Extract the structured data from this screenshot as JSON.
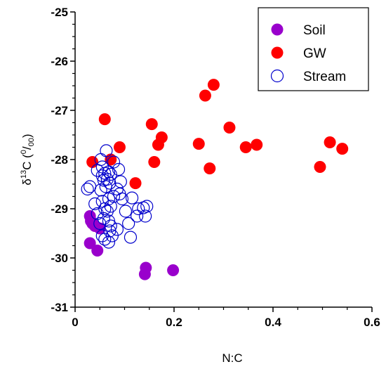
{
  "chart_data": {
    "type": "scatter",
    "xlabel": "N:C",
    "ylabel_parts": {
      "delta": "δ",
      "superscript": "13",
      "element": "C (",
      "permil_num": "0",
      "slash": "/",
      "permil_den": "00",
      "close": ")"
    },
    "xlim": [
      0,
      0.6
    ],
    "ylim": [
      -31,
      -25
    ],
    "x_ticks": [
      0,
      0.2,
      0.4,
      0.6
    ],
    "x_tick_labels": [
      "0",
      "0.2",
      "0.4",
      "0.6"
    ],
    "y_ticks": [
      -25,
      -26,
      -27,
      -28,
      -29,
      -30,
      -31
    ],
    "y_tick_labels": [
      "-25",
      "-26",
      "-27",
      "-28",
      "-29",
      "-30",
      "-31"
    ],
    "x_minor_step": 0.05,
    "y_minor_step": 0.25,
    "grid": false,
    "legend_position": "top-right",
    "series": [
      {
        "name": "Soil",
        "color": "#9900cc",
        "marker": "filled-circle",
        "points": [
          [
            0.03,
            -29.15
          ],
          [
            0.032,
            -29.25
          ],
          [
            0.035,
            -29.3
          ],
          [
            0.04,
            -29.35
          ],
          [
            0.05,
            -29.4
          ],
          [
            0.03,
            -29.7
          ],
          [
            0.045,
            -29.85
          ],
          [
            0.143,
            -30.2
          ],
          [
            0.141,
            -30.33
          ],
          [
            0.198,
            -30.25
          ]
        ]
      },
      {
        "name": "GW",
        "color": "#ff0000",
        "marker": "filled-circle",
        "points": [
          [
            0.035,
            -28.05
          ],
          [
            0.06,
            -27.18
          ],
          [
            0.072,
            -28.0
          ],
          [
            0.09,
            -27.75
          ],
          [
            0.122,
            -28.48
          ],
          [
            0.155,
            -27.28
          ],
          [
            0.16,
            -28.05
          ],
          [
            0.168,
            -27.7
          ],
          [
            0.175,
            -27.55
          ],
          [
            0.25,
            -27.68
          ],
          [
            0.263,
            -26.7
          ],
          [
            0.272,
            -28.18
          ],
          [
            0.28,
            -26.48
          ],
          [
            0.312,
            -27.35
          ],
          [
            0.345,
            -27.75
          ],
          [
            0.367,
            -27.7
          ],
          [
            0.495,
            -28.15
          ],
          [
            0.515,
            -27.65
          ],
          [
            0.54,
            -27.78
          ]
        ]
      },
      {
        "name": "Stream",
        "color": "#0000cc",
        "marker": "open-circle",
        "points": [
          [
            0.063,
            -27.82
          ],
          [
            0.052,
            -28.0
          ],
          [
            0.078,
            -28.05
          ],
          [
            0.045,
            -28.22
          ],
          [
            0.055,
            -28.15
          ],
          [
            0.06,
            -28.28
          ],
          [
            0.068,
            -28.25
          ],
          [
            0.055,
            -28.33
          ],
          [
            0.072,
            -28.3
          ],
          [
            0.058,
            -28.42
          ],
          [
            0.065,
            -28.4
          ],
          [
            0.07,
            -28.48
          ],
          [
            0.062,
            -28.55
          ],
          [
            0.052,
            -28.62
          ],
          [
            0.03,
            -28.55
          ],
          [
            0.025,
            -28.6
          ],
          [
            0.088,
            -28.2
          ],
          [
            0.092,
            -28.45
          ],
          [
            0.085,
            -28.6
          ],
          [
            0.09,
            -28.7
          ],
          [
            0.095,
            -28.8
          ],
          [
            0.078,
            -28.75
          ],
          [
            0.068,
            -28.8
          ],
          [
            0.055,
            -28.85
          ],
          [
            0.072,
            -28.95
          ],
          [
            0.065,
            -29.05
          ],
          [
            0.06,
            -29.0
          ],
          [
            0.058,
            -29.2
          ],
          [
            0.05,
            -29.3
          ],
          [
            0.068,
            -29.25
          ],
          [
            0.072,
            -29.35
          ],
          [
            0.085,
            -29.42
          ],
          [
            0.07,
            -29.45
          ],
          [
            0.075,
            -29.55
          ],
          [
            0.06,
            -29.62
          ],
          [
            0.068,
            -29.68
          ],
          [
            0.055,
            -29.55
          ],
          [
            0.102,
            -29.05
          ],
          [
            0.115,
            -28.78
          ],
          [
            0.108,
            -29.3
          ],
          [
            0.112,
            -29.58
          ],
          [
            0.125,
            -29.15
          ],
          [
            0.128,
            -29.0
          ],
          [
            0.138,
            -28.98
          ],
          [
            0.142,
            -29.15
          ],
          [
            0.145,
            -28.95
          ],
          [
            0.045,
            -29.1
          ],
          [
            0.04,
            -28.9
          ]
        ]
      }
    ]
  }
}
